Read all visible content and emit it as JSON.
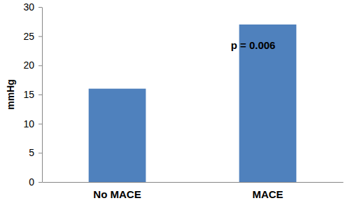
{
  "chart_data": {
    "type": "bar",
    "y_label": "mmHg",
    "categories": [
      "No MACE",
      "MACE"
    ],
    "values": [
      16,
      27
    ],
    "color": "#4f81bd",
    "ylim": [
      0,
      30
    ],
    "yticks": [
      0,
      5,
      10,
      15,
      20,
      25,
      30
    ],
    "grid": false,
    "annotations": [
      "p = 0.006"
    ]
  }
}
